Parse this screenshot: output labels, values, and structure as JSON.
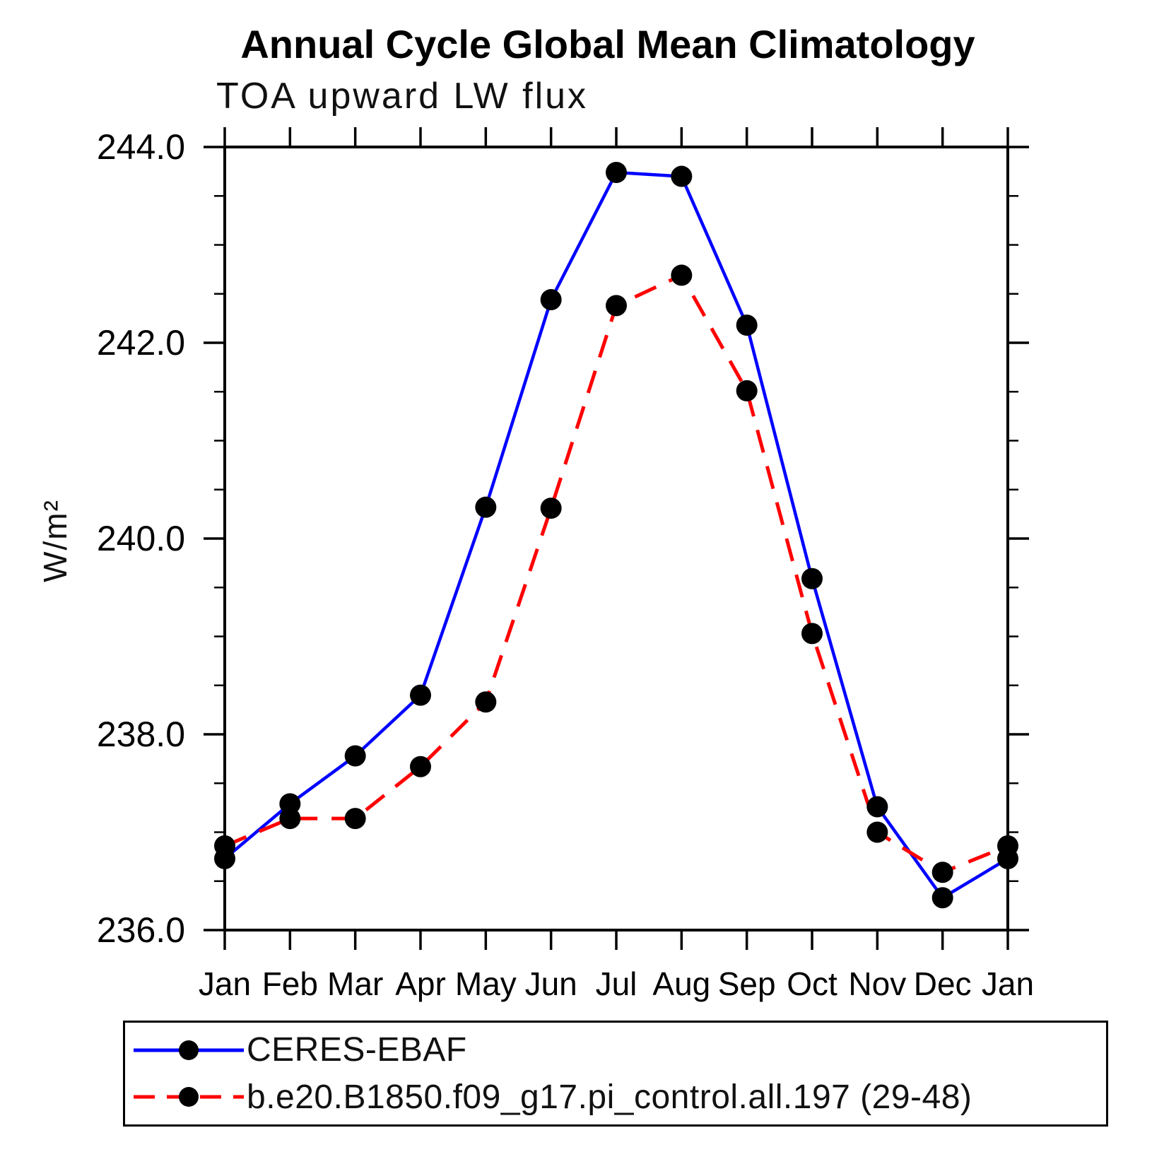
{
  "chart_data": {
    "type": "line",
    "title": "Annual Cycle Global Mean Climatology",
    "subtitle": "TOA upward LW flux",
    "xlabel": "",
    "ylabel": "W/m²",
    "categories": [
      "Jan",
      "Feb",
      "Mar",
      "Apr",
      "May",
      "Jun",
      "Jul",
      "Aug",
      "Sep",
      "Oct",
      "Nov",
      "Dec",
      "Jan"
    ],
    "ylim": [
      236.0,
      244.0
    ],
    "y_major_tick_labels": [
      "236.0",
      "238.0",
      "240.0",
      "242.0",
      "244.0"
    ],
    "y_major_tick_step": 2.0,
    "y_minor_tick_step": 0.5,
    "grid": false,
    "legend_position": "bottom-left-box",
    "axis_color": "#000000",
    "marker_color": "#000000",
    "series": [
      {
        "name": "CERES-EBAF",
        "line_color": "#0000ff",
        "line_style": "solid",
        "marker": "filled-circle",
        "values": [
          236.73,
          237.29,
          237.78,
          238.4,
          240.32,
          242.44,
          243.74,
          243.7,
          242.18,
          239.59,
          237.26,
          236.33,
          236.73
        ]
      },
      {
        "name": "b.e20.B1850.f09_g17.pi_control.all.197 (29-48)",
        "line_color": "#ff0000",
        "line_style": "dashed",
        "marker": "filled-circle",
        "values": [
          236.86,
          237.14,
          237.14,
          237.67,
          238.33,
          240.31,
          242.38,
          242.69,
          241.51,
          239.03,
          237.0,
          236.59,
          236.86
        ]
      }
    ]
  }
}
